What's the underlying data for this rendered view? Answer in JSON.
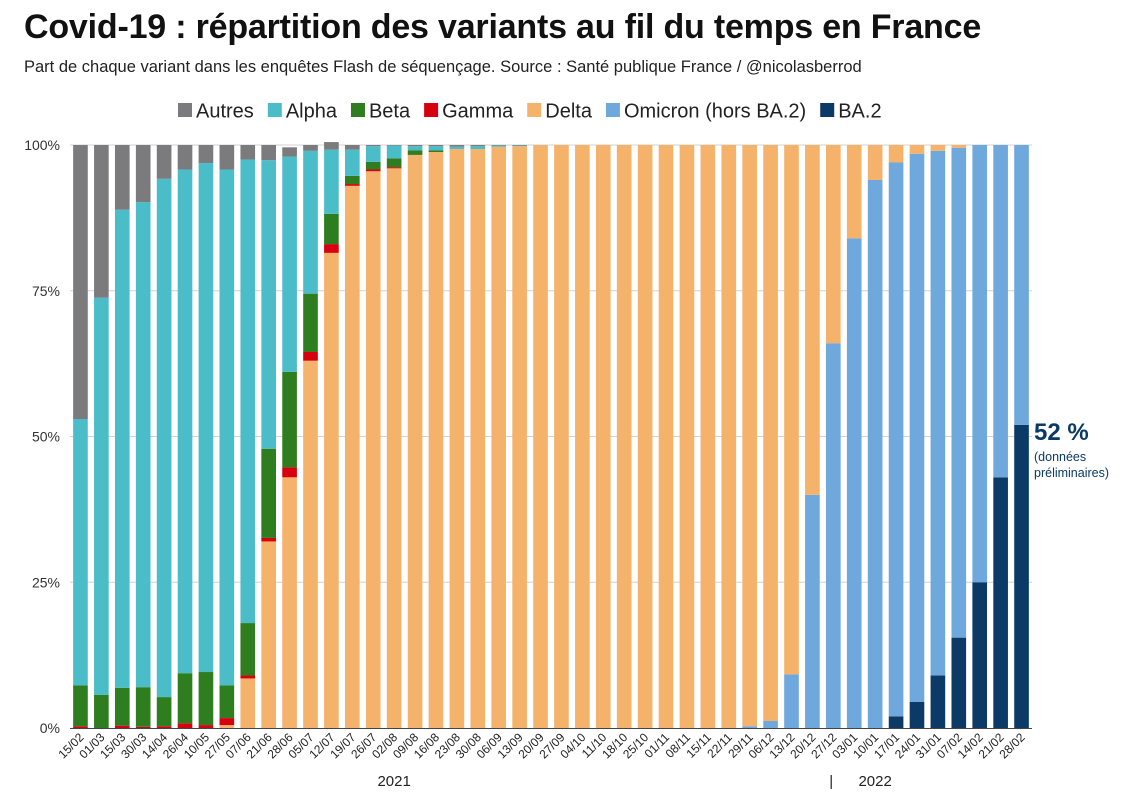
{
  "title": "Covid-19 : répartition des variants au fil du temps en France",
  "subtitle": "Part de chaque variant dans les enquêtes Flash de séquençage. Source : Santé publique France / @nicolasberrod",
  "chart_data": {
    "type": "bar",
    "stacked": true,
    "percent": true,
    "title": "Covid-19 : répartition des variants au fil du temps en France",
    "subtitle": "Part de chaque variant dans les enquêtes Flash de séquençage. Source : Santé publique France / @nicolasberrod",
    "legend_position": "top",
    "ylim": [
      0,
      100
    ],
    "yticks": [
      "0%",
      "25%",
      "50%",
      "75%",
      "100%"
    ],
    "grid": true,
    "categories": [
      "15/02",
      "01/03",
      "15/03",
      "30/03",
      "14/04",
      "26/04",
      "10/05",
      "27/05",
      "07/06",
      "21/06",
      "28/06",
      "05/07",
      "12/07",
      "19/07",
      "26/07",
      "02/08",
      "09/08",
      "16/08",
      "23/08",
      "30/08",
      "06/09",
      "13/09",
      "20/09",
      "27/09",
      "04/10",
      "11/10",
      "18/10",
      "25/10",
      "01/11",
      "08/11",
      "15/11",
      "22/11",
      "29/11",
      "06/12",
      "13/12",
      "20/12",
      "27/12",
      "03/01",
      "10/01",
      "17/01",
      "24/01",
      "31/01",
      "07/02",
      "14/02",
      "21/02",
      "28/02"
    ],
    "year_labels": [
      {
        "label": "2021",
        "category_index": 15
      },
      {
        "label": "2022",
        "category_index": 38
      }
    ],
    "year_separator": "|",
    "series": [
      {
        "name": "BA.2",
        "color": "#0b3a66",
        "values": [
          0,
          0,
          0,
          0,
          0,
          0,
          0,
          0,
          0,
          0,
          0,
          0,
          0,
          0,
          0,
          0,
          0,
          0,
          0,
          0,
          0,
          0,
          0,
          0,
          0,
          0,
          0,
          0,
          0,
          0,
          0,
          0,
          0,
          0,
          0,
          0,
          0,
          0,
          0,
          2,
          4.5,
          9,
          15.5,
          25,
          43,
          52
        ]
      },
      {
        "name": "Omicron (hors BA.2)",
        "color": "#6fa8dc",
        "values": [
          0,
          0,
          0,
          0,
          0,
          0,
          0,
          0,
          0,
          0,
          0,
          0,
          0,
          0,
          0,
          0,
          0,
          0,
          0,
          0,
          0,
          0,
          0,
          0,
          0,
          0,
          0,
          0,
          0,
          0,
          0,
          0,
          0.3,
          1.2,
          9.2,
          40,
          66,
          84,
          94,
          95,
          94,
          90,
          84,
          75,
          57,
          48
        ]
      },
      {
        "name": "Delta",
        "color": "#f5b26b",
        "values": [
          0,
          0,
          0,
          0,
          0,
          0,
          0,
          0.5,
          8.5,
          32,
          43,
          63,
          81.5,
          93,
          95.5,
          96,
          98.3,
          98.8,
          99.3,
          99.3,
          99.7,
          99.8,
          100,
          100,
          100,
          100,
          100,
          100,
          100,
          100,
          100,
          100,
          99.7,
          98.8,
          90.8,
          60,
          34,
          16,
          6,
          3,
          1.5,
          1,
          0.5,
          0,
          0,
          0
        ]
      },
      {
        "name": "Gamma",
        "color": "#d6000f",
        "values": [
          0.3,
          0,
          0.4,
          0.2,
          0.3,
          0.8,
          0.5,
          1.2,
          0.5,
          0.6,
          1.7,
          1.5,
          1.5,
          0.3,
          0.3,
          0.2,
          0,
          0,
          0,
          0,
          0,
          0,
          0,
          0,
          0,
          0,
          0,
          0,
          0,
          0,
          0,
          0,
          0,
          0,
          0,
          0,
          0,
          0,
          0,
          0,
          0,
          0,
          0,
          0,
          0,
          0
        ]
      },
      {
        "name": "Beta",
        "color": "#2e7d1e",
        "values": [
          7,
          5.7,
          6.5,
          6.8,
          5,
          8.6,
          9.1,
          5.6,
          9,
          15.3,
          16.4,
          10,
          5.2,
          1.4,
          1.3,
          1.5,
          0.8,
          0.3,
          0,
          0,
          0,
          0,
          0,
          0,
          0,
          0,
          0,
          0,
          0,
          0,
          0,
          0,
          0,
          0,
          0,
          0,
          0,
          0,
          0,
          0,
          0,
          0,
          0,
          0,
          0,
          0
        ]
      },
      {
        "name": "Alpha",
        "color": "#4bbdc8",
        "values": [
          45.7,
          68.1,
          82,
          83.2,
          88.9,
          86.4,
          87.3,
          88.5,
          79.5,
          49.5,
          36.9,
          24.5,
          11,
          4.5,
          2.7,
          2.2,
          0.7,
          0.7,
          0.4,
          0.5,
          0.2,
          0.1,
          0,
          0,
          0,
          0,
          0,
          0,
          0,
          0,
          0,
          0,
          0,
          0,
          0,
          0,
          0,
          0,
          0,
          0,
          0,
          0,
          0,
          0,
          0,
          0
        ]
      },
      {
        "name": "Autres",
        "color": "#7b7b7d",
        "values": [
          47,
          26.2,
          11.1,
          9.8,
          5.8,
          4.2,
          3.1,
          4.2,
          2.5,
          2.6,
          1.6,
          1,
          1.3,
          0.8,
          0.2,
          0.1,
          0.2,
          0.2,
          0.3,
          0.2,
          0.1,
          0.1,
          0,
          0,
          0,
          0,
          0,
          0,
          0,
          0,
          0,
          0,
          0,
          0,
          0,
          0,
          0,
          0,
          0,
          0,
          0,
          0,
          0,
          0,
          0,
          0
        ]
      }
    ],
    "legend_order": [
      "Autres",
      "Alpha",
      "Beta",
      "Gamma",
      "Delta",
      "Omicron (hors BA.2)",
      "BA.2"
    ],
    "annotation": {
      "value_label": "52 %",
      "note_line1": "(données",
      "note_line2": "préliminaires)",
      "category": "28/02",
      "series": "BA.2",
      "color": "#0b3a66"
    }
  }
}
